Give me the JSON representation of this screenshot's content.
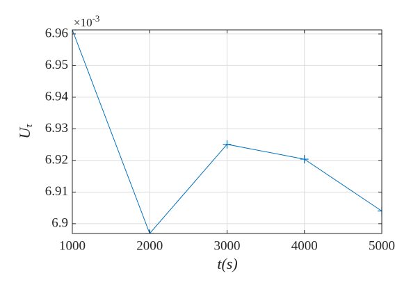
{
  "chart_data": {
    "type": "line",
    "x_label": "t(s)",
    "y_label": "U",
    "y_label_subscript": "τ",
    "exponent_base": "×10",
    "exponent_power": "-3",
    "x": [
      1000,
      2000,
      3000,
      4000,
      5000
    ],
    "series": [
      {
        "color": "#0072bd",
        "marker": "+",
        "values": [
          6.9613,
          6.8969,
          6.9251,
          6.9204,
          6.904
        ]
      }
    ],
    "xlim": [
      1000,
      5000
    ],
    "xticks": [
      1000,
      2000,
      3000,
      4000,
      5000
    ],
    "ylim": [
      6.8969,
      6.9613
    ],
    "yticks": [
      6.9,
      6.91,
      6.92,
      6.93,
      6.94,
      6.95,
      6.96
    ],
    "grid": true
  }
}
